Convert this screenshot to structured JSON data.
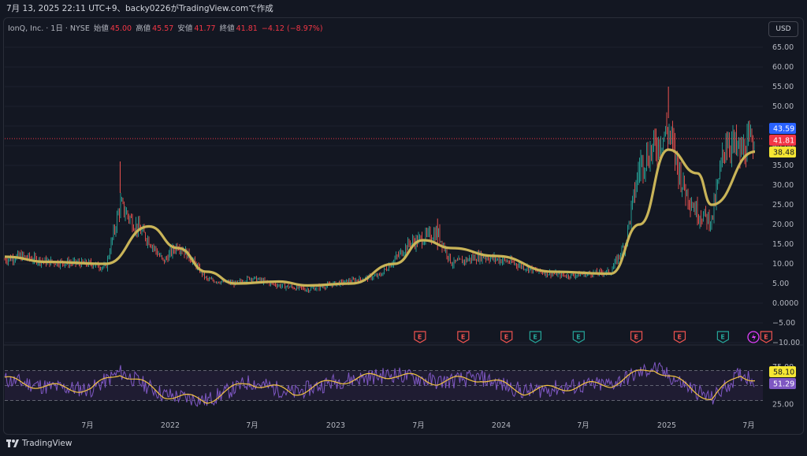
{
  "header": {
    "caption": "7月 13, 2025 22:11 UTC+9、backy0226がTradingView.comで作成"
  },
  "legend": {
    "symbol": "IonQ, Inc. · 1日 · NYSE",
    "open_label": "始値",
    "open": "45.00",
    "high_label": "高値",
    "high": "45.57",
    "low_label": "安値",
    "low": "41.77",
    "close_label": "終値",
    "close": "41.81",
    "change": "−4.12 (−8.97%)"
  },
  "currency_button": "USD",
  "footer": {
    "brand": "TradingView"
  },
  "colors": {
    "up": "#26a69a",
    "down": "#ef5350",
    "ma": "#c9b458",
    "rsi": "#7e57c2",
    "rsi_ma": "#f5c542",
    "background": "#131722"
  },
  "chart_data": [
    {
      "type": "candlestick",
      "title": "IonQ, Inc. · 1日 · NYSE",
      "ylim": [
        -10,
        68
      ],
      "y_ticks": [
        "65.00",
        "60.00",
        "55.00",
        "50.00",
        "45.00",
        "40.00",
        "35.00",
        "30.00",
        "25.00",
        "20.00",
        "15.00",
        "10.00",
        "5.00",
        "0.0000",
        "−5.00",
        "−10.00"
      ],
      "x_ticks": [
        "7月",
        "2022",
        "7月",
        "2023",
        "7月",
        "2024",
        "7月",
        "2025",
        "7月"
      ],
      "price_tags": [
        {
          "label": "43.59",
          "value": 43.59,
          "color": "#2962ff"
        },
        {
          "label": "41.81",
          "value": 41.81,
          "color": "#f23645"
        },
        {
          "label": "38.48",
          "value": 38.48,
          "color": "#f5e633"
        }
      ],
      "last_price_line": 41.81,
      "close_path": [
        [
          "2021-03",
          11
        ],
        [
          "2021-04",
          12
        ],
        [
          "2021-06",
          10.5
        ],
        [
          "2021-09",
          10
        ],
        [
          "2021-10",
          9
        ],
        [
          "2021-11",
          25
        ],
        [
          "2021-12",
          20
        ],
        [
          "2022-01",
          16
        ],
        [
          "2022-02",
          10.5
        ],
        [
          "2022-03",
          15
        ],
        [
          "2022-04",
          11
        ],
        [
          "2022-05",
          6
        ],
        [
          "2022-07",
          5
        ],
        [
          "2022-08",
          6.5
        ],
        [
          "2022-10",
          4.5
        ],
        [
          "2022-12",
          3.5
        ],
        [
          "2023-02",
          5
        ],
        [
          "2023-05",
          7
        ],
        [
          "2023-07",
          15
        ],
        [
          "2023-09",
          18
        ],
        [
          "2023-10",
          10
        ],
        [
          "2023-12",
          12
        ],
        [
          "2024-02",
          10.5
        ],
        [
          "2024-04",
          8
        ],
        [
          "2024-06",
          7
        ],
        [
          "2024-09",
          8
        ],
        [
          "2024-10",
          15
        ],
        [
          "2024-11",
          35
        ],
        [
          "2025-01",
          44
        ],
        [
          "2025-02",
          30
        ],
        [
          "2025-03",
          23
        ],
        [
          "2025-04",
          21
        ],
        [
          "2025-05",
          42
        ],
        [
          "2025-06",
          38
        ],
        [
          "2025-07",
          41.81
        ]
      ],
      "moving_average": [
        [
          "2021-03",
          11.8
        ],
        [
          "2021-06",
          10.5
        ],
        [
          "2021-10",
          10
        ],
        [
          "2022-01",
          19.5
        ],
        [
          "2022-03",
          14
        ],
        [
          "2022-05",
          8
        ],
        [
          "2022-07",
          5
        ],
        [
          "2022-10",
          5.5
        ],
        [
          "2022-12",
          4.5
        ],
        [
          "2023-03",
          5
        ],
        [
          "2023-06",
          10
        ],
        [
          "2023-08",
          16
        ],
        [
          "2023-10",
          14
        ],
        [
          "2024-01",
          12
        ],
        [
          "2024-05",
          8
        ],
        [
          "2024-09",
          7.5
        ],
        [
          "2024-11",
          20
        ],
        [
          "2025-01",
          39
        ],
        [
          "2025-03",
          33
        ],
        [
          "2025-04",
          25
        ],
        [
          "2025-07",
          38.48
        ]
      ],
      "earnings_markers": [
        {
          "label": "E",
          "date": "2023-08",
          "kind": "miss"
        },
        {
          "label": "E",
          "date": "2023-11",
          "kind": "miss"
        },
        {
          "label": "E",
          "date": "2024-02",
          "kind": "miss"
        },
        {
          "label": "E",
          "date": "2024-04",
          "kind": "beat"
        },
        {
          "label": "E",
          "date": "2024-07",
          "kind": "beat"
        },
        {
          "label": "E",
          "date": "2024-11",
          "kind": "miss"
        },
        {
          "label": "E",
          "date": "2025-02",
          "kind": "miss"
        },
        {
          "label": "E",
          "date": "2025-05",
          "kind": "beat"
        },
        {
          "label": "E",
          "date": "2025-08",
          "kind": "miss"
        }
      ]
    },
    {
      "type": "line",
      "title": "RSI",
      "y_ticks": [
        "75.00",
        "25.00"
      ],
      "bands": [
        70,
        50,
        30
      ],
      "price_tags": [
        {
          "label": "58.10",
          "value": 58.1,
          "color": "#f5e633"
        },
        {
          "label": "51.29",
          "value": 51.29,
          "color": "#7e57c2"
        }
      ],
      "rsi_ma_path": [
        [
          "2021-03",
          58
        ],
        [
          "2021-06",
          48
        ],
        [
          "2021-09",
          45
        ],
        [
          "2021-11",
          68
        ],
        [
          "2022-02",
          38
        ],
        [
          "2022-05",
          30
        ],
        [
          "2022-08",
          55
        ],
        [
          "2022-11",
          40
        ],
        [
          "2023-02",
          56
        ],
        [
          "2023-06",
          65
        ],
        [
          "2023-09",
          55
        ],
        [
          "2023-12",
          60
        ],
        [
          "2024-03",
          42
        ],
        [
          "2024-06",
          48
        ],
        [
          "2024-09",
          52
        ],
        [
          "2024-12",
          74
        ],
        [
          "2025-02",
          52
        ],
        [
          "2025-04",
          32
        ],
        [
          "2025-06",
          66
        ],
        [
          "2025-07",
          58.1
        ]
      ]
    }
  ]
}
